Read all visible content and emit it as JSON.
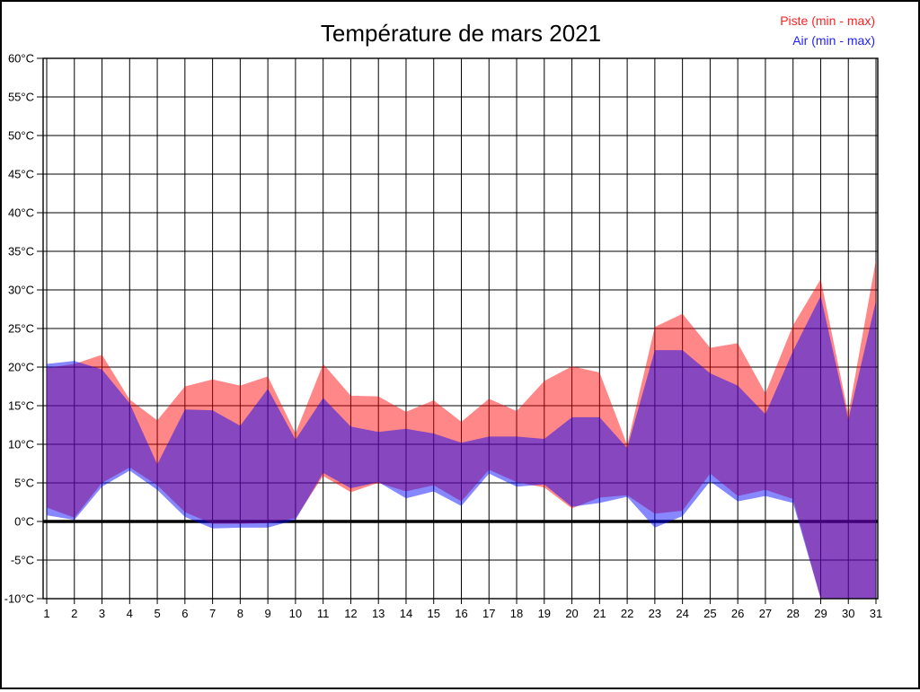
{
  "title": "Température de mars 2021",
  "legend": [
    {
      "label": "Piste (min - max)",
      "color": "#ff2020"
    },
    {
      "label": "Air (min - max)",
      "color": "#2020ff"
    }
  ],
  "chart_data": {
    "type": "range_area",
    "title": "Température de mars 2021",
    "legend_position": "top-right",
    "grid": true,
    "zero_line": true,
    "overlap_rendering": "semi-transparent red and blue bands overlap to purple",
    "categories": [
      "1",
      "2",
      "3",
      "4",
      "5",
      "6",
      "7",
      "8",
      "9",
      "10",
      "11",
      "12",
      "13",
      "14",
      "15",
      "16",
      "17",
      "18",
      "19",
      "20",
      "21",
      "22",
      "23",
      "24",
      "25",
      "26",
      "27",
      "28",
      "29",
      "30",
      "31"
    ],
    "y_axis": {
      "min": -10,
      "max": 60,
      "step": 5,
      "unit": "°C",
      "tick_labels": [
        "60°C",
        "55°C",
        "50°C",
        "45°C",
        "40°C",
        "35°C",
        "30°C",
        "25°C",
        "20°C",
        "15°C",
        "10°C",
        "5°C",
        "0°C",
        "-5°C",
        "-10°C"
      ]
    },
    "series": [
      {
        "name": "Piste (min - max)",
        "fill": "rgba(255,0,0,0.47)",
        "max": [
          19.9,
          20.4,
          21.6,
          15.8,
          13.1,
          17.5,
          18.4,
          17.6,
          18.8,
          11.4,
          20.4,
          16.3,
          16.2,
          14.2,
          15.7,
          12.9,
          15.9,
          14.3,
          18.2,
          20.1,
          19.3,
          9.9,
          25.2,
          26.9,
          22.5,
          23.1,
          16.6,
          25.4,
          31.4,
          13.9,
          33.9
        ],
        "min": [
          1.8,
          0.5,
          5.0,
          7.0,
          4.7,
          1.2,
          -0.3,
          -0.3,
          -0.2,
          0.4,
          5.9,
          3.8,
          5.0,
          3.9,
          4.7,
          2.6,
          6.7,
          5.1,
          4.4,
          1.7,
          3.1,
          3.4,
          1.0,
          1.4,
          6.2,
          3.3,
          4.1,
          2.9,
          -10,
          -10,
          -10
        ]
      },
      {
        "name": "Air (min - max)",
        "fill": "rgba(0,0,255,0.47)",
        "max": [
          20.4,
          20.8,
          19.7,
          15.3,
          7.4,
          14.5,
          14.4,
          12.4,
          17.2,
          10.6,
          16.0,
          12.3,
          11.6,
          12.0,
          11.4,
          10.2,
          11.0,
          11.0,
          10.7,
          13.5,
          13.5,
          9.5,
          22.2,
          22.2,
          19.2,
          17.6,
          13.9,
          22.1,
          29.2,
          13.2,
          28.6
        ],
        "min": [
          0.8,
          0.2,
          4.5,
          6.6,
          4.1,
          0.6,
          -0.9,
          -0.8,
          -0.8,
          0.2,
          6.3,
          4.3,
          5.1,
          3.0,
          3.9,
          2.0,
          6.2,
          4.5,
          4.8,
          1.9,
          2.4,
          3.2,
          -0.8,
          0.7,
          5.2,
          2.6,
          3.3,
          2.4,
          -10,
          -10,
          -10
        ]
      }
    ]
  }
}
